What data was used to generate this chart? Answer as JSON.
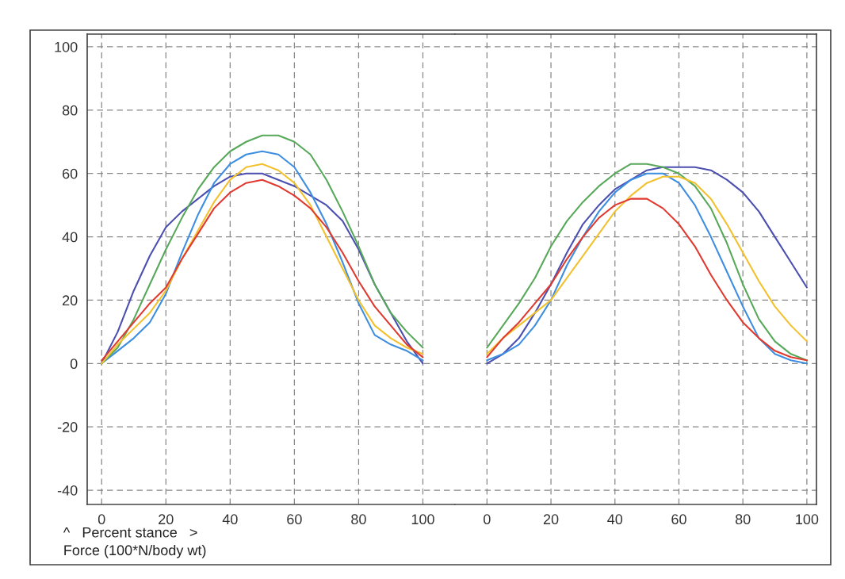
{
  "chart_data": [
    {
      "type": "line",
      "xlabel": "^   Percent stance   >",
      "ylabel": "Force (100*N/body wt)",
      "x": [
        0,
        5,
        10,
        15,
        20,
        25,
        30,
        35,
        40,
        45,
        50,
        55,
        60,
        65,
        70,
        75,
        80,
        85,
        90,
        95,
        100
      ],
      "xlim": [
        -4.5,
        110
      ],
      "xticks": [
        0,
        20,
        40,
        60,
        80,
        100
      ],
      "ylim": [
        -44.5,
        104
      ],
      "yticks": [
        -40,
        -20,
        0,
        20,
        40,
        60,
        80,
        100
      ],
      "grid": true,
      "line_style": "solid",
      "series": [
        {
          "color": "#e03a30",
          "values": [
            1,
            7,
            13,
            19,
            24,
            33,
            41,
            49,
            54,
            57,
            58,
            56,
            53,
            49,
            43,
            35,
            26,
            18,
            12,
            6,
            2
          ]
        },
        {
          "color": "#f2c12e",
          "values": [
            0,
            6,
            11,
            16,
            23,
            33,
            42,
            51,
            58,
            62,
            63,
            61,
            57,
            50,
            40,
            30,
            20,
            12,
            8,
            5,
            3
          ]
        },
        {
          "color": "#58a85a",
          "values": [
            0,
            5,
            14,
            25,
            36,
            46,
            55,
            62,
            67,
            70,
            72,
            72,
            70,
            66,
            58,
            48,
            37,
            25,
            16,
            10,
            5
          ]
        },
        {
          "color": "#3d8ee0",
          "values": [
            0,
            4,
            8,
            13,
            22,
            35,
            47,
            57,
            63,
            66,
            67,
            66,
            62,
            54,
            44,
            32,
            19,
            9,
            6,
            4,
            1
          ]
        },
        {
          "color": "#4b4fb0",
          "values": [
            0,
            10,
            23,
            34,
            43,
            48,
            52,
            56,
            59,
            60,
            60,
            58,
            56,
            53,
            50,
            45,
            36,
            25,
            16,
            7,
            0
          ]
        }
      ]
    },
    {
      "type": "line",
      "x": [
        0,
        5,
        10,
        15,
        20,
        25,
        30,
        35,
        40,
        45,
        50,
        55,
        60,
        65,
        70,
        75,
        80,
        85,
        90,
        95,
        100
      ],
      "xlim": [
        -10,
        103
      ],
      "xticks": [
        0,
        20,
        40,
        60,
        80,
        100
      ],
      "ylim": [
        -44.5,
        104
      ],
      "yticks": [
        -40,
        -20,
        0,
        20,
        40,
        60,
        80,
        100
      ],
      "grid": true,
      "line_style": "solid",
      "tick_labels": "x",
      "series": [
        {
          "color": "#e03a30",
          "values": [
            2,
            8,
            13,
            19,
            25,
            33,
            40,
            46,
            50,
            52,
            52,
            49,
            44,
            37,
            28,
            20,
            13,
            8,
            4,
            2,
            1
          ]
        },
        {
          "color": "#f2c12e",
          "values": [
            3,
            8,
            12,
            16,
            20,
            27,
            34,
            41,
            48,
            53,
            57,
            59,
            59,
            57,
            52,
            44,
            35,
            26,
            18,
            12,
            7
          ]
        },
        {
          "color": "#58a85a",
          "values": [
            5,
            12,
            19,
            27,
            37,
            45,
            51,
            56,
            60,
            63,
            63,
            62,
            60,
            56,
            49,
            38,
            25,
            14,
            7,
            3,
            1
          ]
        },
        {
          "color": "#3d8ee0",
          "values": [
            1,
            3,
            6,
            12,
            20,
            31,
            40,
            48,
            54,
            58,
            60,
            60,
            57,
            50,
            40,
            29,
            18,
            8,
            3,
            1,
            0
          ]
        },
        {
          "color": "#4b4fb0",
          "values": [
            0,
            3,
            8,
            16,
            25,
            35,
            44,
            50,
            55,
            58,
            61,
            62,
            62,
            62,
            61,
            58,
            54,
            48,
            40,
            32,
            24
          ]
        }
      ]
    }
  ]
}
